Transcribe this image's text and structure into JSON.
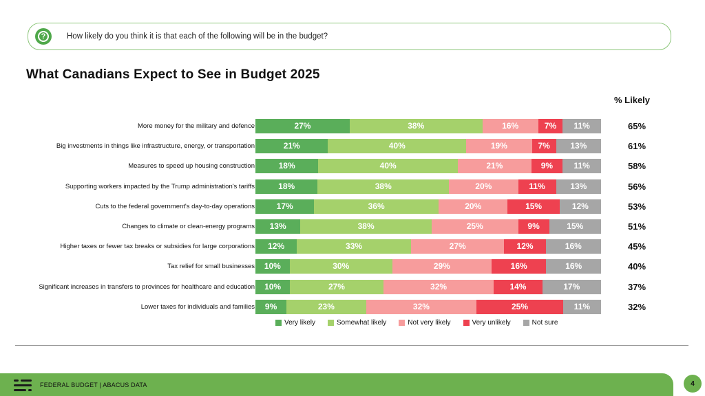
{
  "question": "How likely do you think it is that each of the following will be in the budget?",
  "question_icon": "question-circle-icon",
  "footer": {
    "text": "FEDERAL BUDGET | ABACUS DATA",
    "page_number": "4"
  },
  "colors": {
    "very_likely": "#5aae5a",
    "somewhat_likely": "#a5d16b",
    "not_very_likely": "#f79c9c",
    "very_unlikely": "#ee4150",
    "not_sure": "#a6a6a6",
    "accent": "#6db14f"
  },
  "chart_data": {
    "type": "bar",
    "orientation": "horizontal",
    "stacked": true,
    "title": "What Canadians Expect to See in Budget 2025",
    "right_column_header": "% Likely",
    "legend_position": "bottom",
    "categories": [
      "More money for the military and defence",
      "Big investments in things like infrastructure, energy, or transportation",
      "Measures to speed up housing construction",
      "Supporting workers impacted by the Trump administration's tariffs",
      "Cuts to the federal government's day-to-day operations",
      "Changes to climate or clean-energy programs",
      "Higher taxes or fewer tax breaks or subsidies for large corporations",
      "Tax relief for small businesses",
      "Significant increases in transfers to provinces for healthcare and education",
      "Lower taxes for individuals and families"
    ],
    "series": [
      {
        "name": "Very likely",
        "values": [
          27,
          21,
          18,
          18,
          17,
          13,
          12,
          10,
          10,
          9
        ]
      },
      {
        "name": "Somewhat likely",
        "values": [
          38,
          40,
          40,
          38,
          36,
          38,
          33,
          30,
          27,
          23
        ]
      },
      {
        "name": "Not very likely",
        "values": [
          16,
          19,
          21,
          20,
          20,
          25,
          27,
          29,
          32,
          32
        ]
      },
      {
        "name": "Very unlikely",
        "values": [
          7,
          7,
          9,
          11,
          15,
          9,
          12,
          16,
          14,
          25
        ]
      },
      {
        "name": "Not sure",
        "values": [
          11,
          13,
          11,
          13,
          12,
          15,
          16,
          16,
          17,
          11
        ]
      }
    ],
    "pct_likely": [
      "65%",
      "61%",
      "58%",
      "56%",
      "53%",
      "51%",
      "45%",
      "40%",
      "37%",
      "32%"
    ]
  }
}
